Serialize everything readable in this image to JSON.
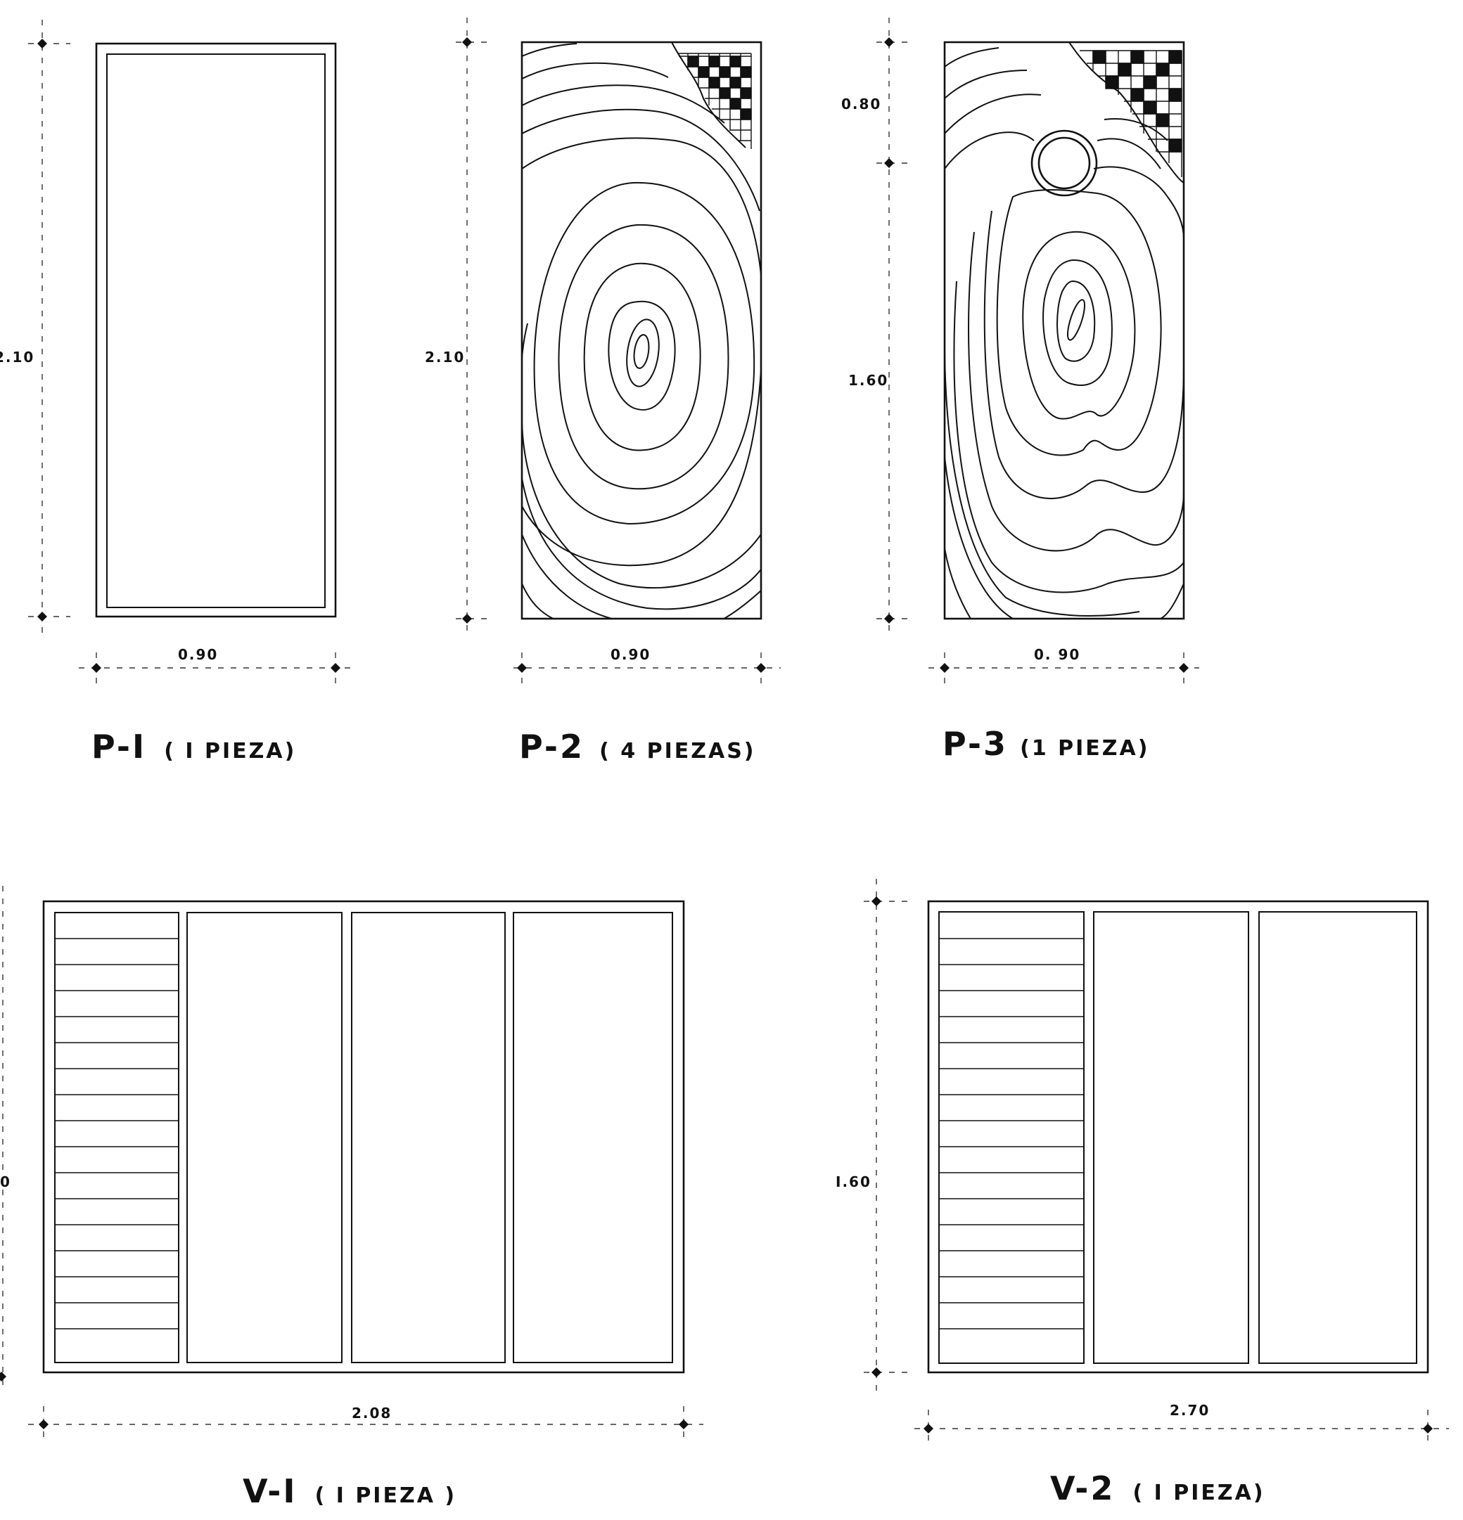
{
  "drawings": {
    "p1": {
      "title": "P-I",
      "note": "( I PIEZA)",
      "height_label": "2.10",
      "width_label": "0.90"
    },
    "p2": {
      "title": "P-2",
      "note": "( 4 PIEZAS)",
      "height_label": "2.10",
      "width_label": "0.90"
    },
    "p3": {
      "title": "P-3",
      "note": "(1 PIEZA)",
      "top_label": "0.80",
      "height_label": "1.60",
      "width_label": "0. 90"
    },
    "v1": {
      "title": "V-I",
      "note": "( I PIEZA )",
      "height_label": "0",
      "width_label": "2.08"
    },
    "v2": {
      "title": "V-2",
      "note": "( I PIEZA)",
      "height_label": "I.60",
      "width_label": "2.70"
    }
  },
  "icons": {
    "dimension_marker": "diamond-marker-icon"
  }
}
